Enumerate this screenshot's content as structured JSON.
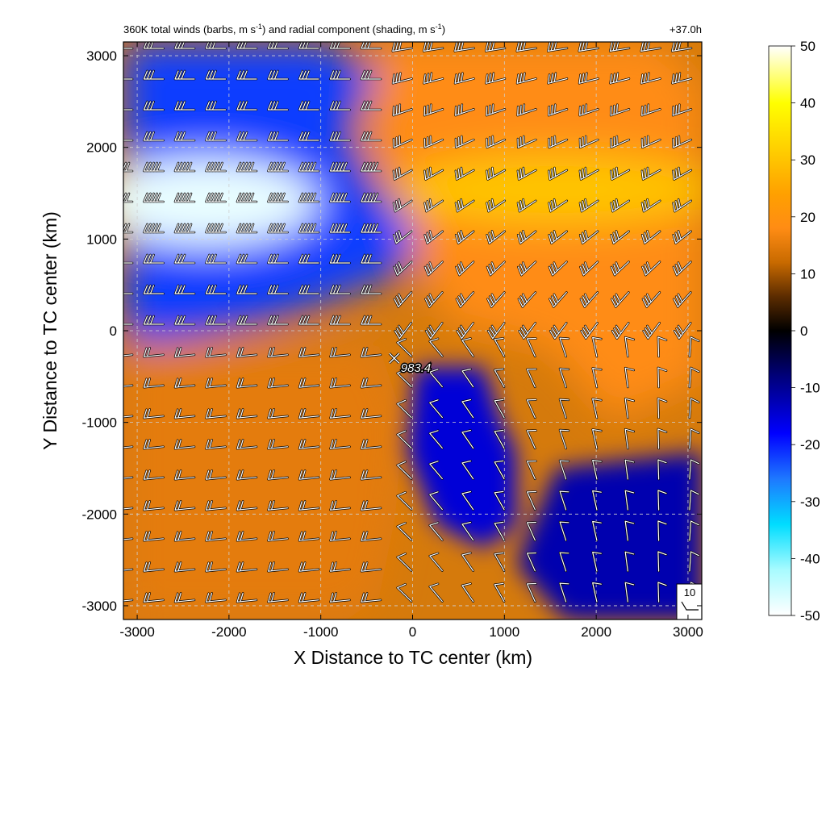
{
  "chart_data": {
    "type": "heatmap",
    "title_left": "360K total winds (barbs, m s",
    "title_sup1": "-1",
    "title_mid": ") and radial component (shading, m s",
    "title_sup2": "-1",
    "title_end": ")",
    "title_right": "+37.0h",
    "xlabel": "X Distance to TC center (km)",
    "ylabel": "Y Distance to TC center (km)",
    "xlim": [
      -3150,
      3150
    ],
    "ylim": [
      -3150,
      3150
    ],
    "xticks": [
      -3000,
      -2000,
      -1000,
      0,
      1000,
      2000,
      3000
    ],
    "yticks": [
      3000,
      2000,
      1000,
      0,
      -1000,
      -2000,
      -3000
    ],
    "grid": true,
    "colorbar": {
      "ticks": [
        50,
        40,
        30,
        20,
        10,
        0,
        -10,
        -20,
        -30,
        -40,
        -50
      ],
      "range": [
        -50,
        50
      ],
      "stops": [
        {
          "v": -50,
          "c": "#ffffff"
        },
        {
          "v": -42,
          "c": "#a8fbff"
        },
        {
          "v": -34,
          "c": "#00ddff"
        },
        {
          "v": -26,
          "c": "#1e78ff"
        },
        {
          "v": -18,
          "c": "#0000ff"
        },
        {
          "v": -8,
          "c": "#00007a"
        },
        {
          "v": 0,
          "c": "#000000"
        },
        {
          "v": 6,
          "c": "#5c2c00"
        },
        {
          "v": 12,
          "c": "#c86a00"
        },
        {
          "v": 18,
          "c": "#ff8c14"
        },
        {
          "v": 24,
          "c": "#ffa000"
        },
        {
          "v": 32,
          "c": "#ffd000"
        },
        {
          "v": 40,
          "c": "#ffff00"
        },
        {
          "v": 50,
          "c": "#ffffff"
        }
      ]
    },
    "shading_regions": [
      {
        "name": "inflow-northwest",
        "value": -22
      },
      {
        "name": "inflow-jet-core",
        "value": -48
      },
      {
        "name": "outflow-northeast",
        "value": 18
      },
      {
        "name": "outflow-jet-east",
        "value": 30
      },
      {
        "name": "outflow-southwest",
        "value": 15
      },
      {
        "name": "inflow-south-central",
        "value": -15
      },
      {
        "name": "inflow-southeast",
        "value": -12
      }
    ],
    "center_marker": {
      "x": -200,
      "y": -300,
      "label": "983.4"
    },
    "barb_legend": {
      "label": "10"
    }
  }
}
